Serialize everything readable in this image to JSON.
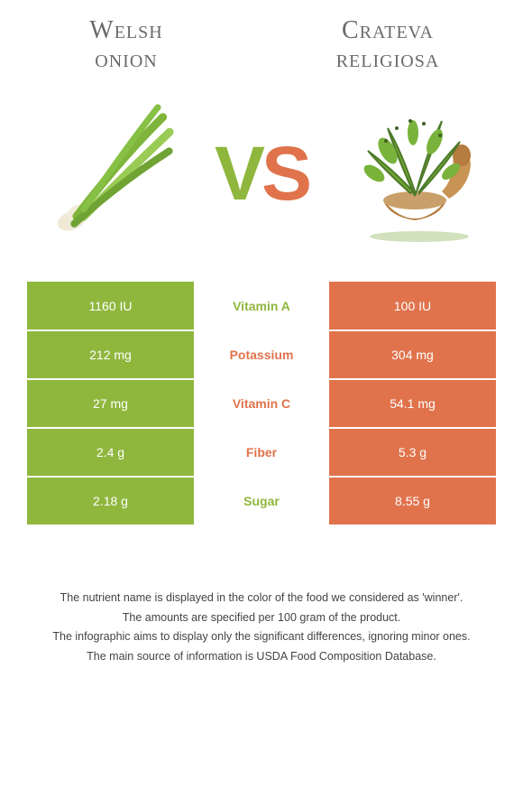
{
  "left": {
    "name_line1": "Welsh",
    "name_line2": "onion"
  },
  "right": {
    "name_line1": "Crateva",
    "name_line2": "religiosa"
  },
  "vs": {
    "v": "V",
    "s": "S"
  },
  "colors": {
    "green": "#8fb73e",
    "orange": "#e0734c",
    "text": "#6a6a6a"
  },
  "rows": [
    {
      "left": "1160 IU",
      "label": "Vitamin A",
      "right": "100 IU",
      "winner": "green"
    },
    {
      "left": "212 mg",
      "label": "Potassium",
      "right": "304 mg",
      "winner": "orange"
    },
    {
      "left": "27 mg",
      "label": "Vitamin C",
      "right": "54.1 mg",
      "winner": "orange"
    },
    {
      "left": "2.4 g",
      "label": "Fiber",
      "right": "5.3 g",
      "winner": "orange"
    },
    {
      "left": "2.18 g",
      "label": "Sugar",
      "right": "8.55 g",
      "winner": "green"
    }
  ],
  "footnotes": [
    "The nutrient name is displayed in the color of the food we considered as 'winner'.",
    "The amounts are specified per 100 gram of the product.",
    "The infographic aims to display only the significant differences, ignoring minor ones.",
    "The main source of information is USDA Food Composition Database."
  ]
}
